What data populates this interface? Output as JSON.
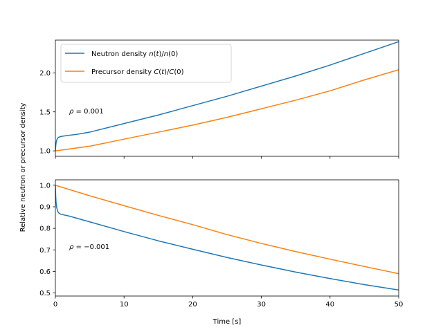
{
  "chart_data": {
    "type": "line",
    "xlabel": "Time [s]",
    "ylabel": "Relative neutron or precursor density",
    "xlim": [
      0,
      50
    ],
    "x_ticks": [
      0,
      10,
      20,
      30,
      40,
      50
    ],
    "grid": false,
    "legend": {
      "placement": "top-left of upper panel",
      "entries": [
        {
          "math": "n(t)/n(0)",
          "text": "Neutron density n(t)/n(0)",
          "prefix": "Neutron density ",
          "var": "n",
          "color": "#1f77b4"
        },
        {
          "math": "C(t)/C(0)",
          "text": "Precursor density C(t)/C(0)",
          "prefix": "Precursor density ",
          "var": "C",
          "color": "#ff7f0e"
        }
      ]
    },
    "panels": [
      {
        "id": "top",
        "annotation": "ρ = 0.001",
        "annotation_rho": "ρ",
        "annotation_value": "0.001",
        "ylim": [
          0.93,
          2.42
        ],
        "y_ticks": [
          1.0,
          1.5,
          2.0
        ],
        "y_tick_labels": [
          "1.0",
          "1.5",
          "2.0"
        ],
        "series": [
          {
            "name": "Neutron density n(t)/n(0)",
            "color": "#1f77b4",
            "x": [
              0,
              0.05,
              0.1,
              0.2,
              0.35,
              0.5,
              0.75,
              1,
              1.5,
              2,
              3,
              5,
              10,
              15,
              20,
              25,
              30,
              35,
              40,
              45,
              50
            ],
            "y": [
              1.0,
              1.06,
              1.1,
              1.14,
              1.165,
              1.175,
              1.183,
              1.187,
              1.194,
              1.2,
              1.21,
              1.24,
              1.35,
              1.46,
              1.58,
              1.7,
              1.83,
              1.96,
              2.1,
              2.25,
              2.4
            ]
          },
          {
            "name": "Precursor density C(t)/C(0)",
            "color": "#ff7f0e",
            "x": [
              0,
              5,
              10,
              15,
              20,
              25,
              30,
              35,
              40,
              45,
              50
            ],
            "y": [
              1.0,
              1.06,
              1.15,
              1.24,
              1.33,
              1.43,
              1.54,
              1.65,
              1.77,
              1.91,
              2.04
            ]
          }
        ]
      },
      {
        "id": "bottom",
        "annotation": "ρ = −0.001",
        "annotation_rho": "ρ",
        "annotation_value": "−0.001",
        "ylim": [
          0.486,
          1.025
        ],
        "y_ticks": [
          0.5,
          0.6,
          0.7,
          0.8,
          0.9,
          1.0
        ],
        "y_tick_labels": [
          "0.5",
          "0.6",
          "0.7",
          "0.8",
          "0.9",
          "1.0"
        ],
        "series": [
          {
            "name": "Neutron density n(t)/n(0)",
            "color": "#1f77b4",
            "x": [
              0,
              0.05,
              0.1,
              0.2,
              0.35,
              0.5,
              0.75,
              1,
              2,
              5,
              10,
              15,
              20,
              25,
              30,
              35,
              40,
              45,
              50
            ],
            "y": [
              1.0,
              0.95,
              0.92,
              0.895,
              0.878,
              0.871,
              0.866,
              0.864,
              0.857,
              0.83,
              0.785,
              0.742,
              0.703,
              0.665,
              0.63,
              0.597,
              0.567,
              0.539,
              0.514
            ]
          },
          {
            "name": "Precursor density C(t)/C(0)",
            "color": "#ff7f0e",
            "x": [
              0,
              5,
              10,
              15,
              20,
              25,
              30,
              35,
              40,
              45,
              50
            ],
            "y": [
              1.0,
              0.951,
              0.905,
              0.86,
              0.817,
              0.771,
              0.73,
              0.692,
              0.657,
              0.623,
              0.59
            ]
          }
        ]
      }
    ]
  }
}
